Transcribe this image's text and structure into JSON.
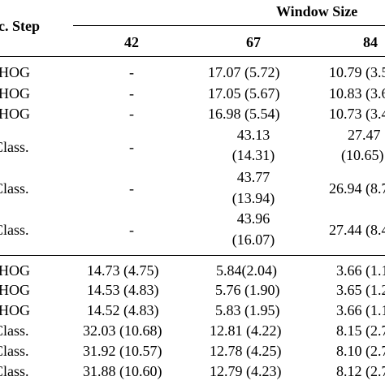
{
  "header": {
    "group_label": "Window Size",
    "step_col_label": "c. Step",
    "columns": [
      "42",
      "67",
      "84"
    ]
  },
  "rows_top": [
    {
      "step": "HOG",
      "c42": "-",
      "c67": "17.07 (5.72)",
      "c84": "10.79 (3.5"
    },
    {
      "step": "HOG",
      "c42": "-",
      "c67": "17.05 (5.67)",
      "c84": "10.83 (3.6"
    },
    {
      "step": "HOG",
      "c42": "-",
      "c67": "16.98 (5.54)",
      "c84": "10.73 (3.4"
    },
    {
      "step": "Class.",
      "c42": "-",
      "c67_line1": "43.13",
      "c67_line2": "(14.31)",
      "c84_line1": "27.47",
      "c84_line2": "(10.65)"
    },
    {
      "step": "Class.",
      "c42": "-",
      "c67_line1": "43.77",
      "c67_line2": "(13.94)",
      "c84": "26.94 (8.7"
    },
    {
      "step": "Class.",
      "c42": "-",
      "c67_line1": "43.96",
      "c67_line2": "(16.07)",
      "c84": "27.44 (8.4"
    }
  ],
  "rows_bottom": [
    {
      "step": "HOG",
      "c42": "14.73 (4.75)",
      "c67": "5.84(2.04)",
      "c84": "3.66 (1.1"
    },
    {
      "step": "HOG",
      "c42": "14.53 (4.83)",
      "c67": "5.76 (1.90)",
      "c84": "3.65 (1.2"
    },
    {
      "step": "HOG",
      "c42": "14.52 (4.83)",
      "c67": "5.83 (1.95)",
      "c84": "3.66 (1.1"
    },
    {
      "step": "Class.",
      "c42": "32.03 (10.68)",
      "c67": "12.81 (4.22)",
      "c84": "8.15 (2.7"
    },
    {
      "step": "Class.",
      "c42": "31.92 (10.57)",
      "c67": "12.78 (4.25)",
      "c84": "8.10 (2.7"
    },
    {
      "step": "Class.",
      "c42": "31.88 (10.60)",
      "c67": "12.79 (4.23)",
      "c84": "8.12 (2.7"
    }
  ]
}
